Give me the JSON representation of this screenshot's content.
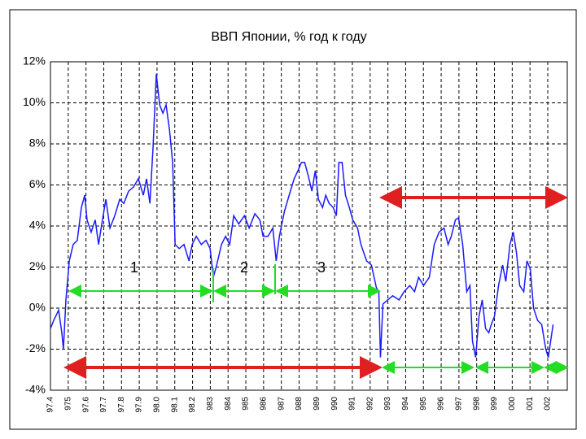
{
  "chart_data": {
    "type": "line",
    "title": "ВВП Японии, % год к году",
    "x": [
      1974.0,
      1974.18,
      1974.46,
      1974.64,
      1974.73,
      1974.87,
      1975.06,
      1975.28,
      1975.51,
      1975.74,
      1975.93,
      1976.06,
      1976.29,
      1976.52,
      1976.71,
      1976.89,
      1977.12,
      1977.35,
      1977.62,
      1977.9,
      1978.13,
      1978.4,
      1978.68,
      1978.95,
      1979.23,
      1979.41,
      1979.6,
      1979.78,
      1979.96,
      1980.15,
      1980.33,
      1980.51,
      1980.7,
      1980.88,
      1981.02,
      1981.25,
      1981.52,
      1981.8,
      1981.98,
      1982.21,
      1982.49,
      1982.76,
      1982.99,
      1983.17,
      1983.36,
      1983.63,
      1983.86,
      1984.09,
      1984.32,
      1984.6,
      1984.92,
      1985.19,
      1985.51,
      1985.79,
      1985.97,
      1986.25,
      1986.52,
      1986.71,
      1986.89,
      1987.17,
      1987.44,
      1987.72,
      1987.94,
      1988.13,
      1988.31,
      1988.5,
      1988.72,
      1988.91,
      1989.09,
      1989.32,
      1989.5,
      1989.69,
      1989.92,
      1990.1,
      1990.24,
      1990.42,
      1990.61,
      1990.83,
      1991.02,
      1991.29,
      1991.48,
      1991.8,
      1992.07,
      1992.35,
      1992.49,
      1992.58,
      1992.72,
      1992.99,
      1993.27,
      1993.63,
      1993.91,
      1994.23,
      1994.5,
      1994.73,
      1995.01,
      1995.33,
      1995.61,
      1995.88,
      1996.16,
      1996.39,
      1996.57,
      1996.8,
      1996.98,
      1997.21,
      1997.44,
      1997.62,
      1997.76,
      1997.94,
      1998.13,
      1998.31,
      1998.5,
      1998.68,
      1998.82,
      1999.0,
      1999.23,
      1999.46,
      1999.64,
      1999.87,
      2000.06,
      2000.24,
      2000.42,
      2000.65,
      2000.83,
      2001.02,
      2001.2,
      2001.43,
      2001.66,
      2001.89,
      2002.03,
      2002.3
    ],
    "series": [
      {
        "name": "ВВП",
        "color": "#1a1aff",
        "values": [
          -1.0,
          -0.6,
          -0.1,
          -1.2,
          -2.0,
          0.4,
          2.3,
          3.1,
          3.3,
          4.9,
          5.5,
          4.3,
          3.7,
          4.3,
          3.1,
          4.1,
          5.3,
          3.9,
          4.5,
          5.3,
          5.1,
          5.7,
          5.9,
          6.3,
          5.5,
          6.3,
          5.1,
          7.9,
          11.4,
          9.9,
          9.5,
          9.9,
          8.7,
          7.1,
          3.1,
          2.9,
          3.1,
          2.3,
          3.1,
          3.5,
          3.1,
          3.3,
          2.9,
          1.5,
          2.1,
          3.1,
          3.5,
          3.1,
          4.5,
          4.1,
          4.5,
          3.9,
          4.6,
          4.3,
          3.5,
          3.5,
          3.9,
          2.3,
          3.5,
          4.7,
          5.5,
          6.3,
          6.7,
          7.1,
          7.1,
          6.5,
          5.7,
          6.7,
          5.3,
          4.9,
          5.5,
          5.1,
          4.9,
          4.5,
          7.1,
          7.1,
          5.5,
          4.9,
          4.3,
          3.9,
          3.1,
          2.3,
          2.1,
          1.0,
          0.8,
          -2.4,
          0.2,
          0.4,
          0.6,
          0.4,
          0.8,
          1.1,
          0.8,
          1.5,
          1.1,
          1.5,
          3.1,
          3.7,
          3.9,
          3.1,
          3.5,
          4.3,
          4.4,
          3.1,
          0.8,
          1.1,
          -1.6,
          -2.4,
          -0.4,
          0.4,
          -1.0,
          -1.2,
          -0.8,
          -0.4,
          1.1,
          2.1,
          1.3,
          3.1,
          3.7,
          2.7,
          1.1,
          0.8,
          2.3,
          1.9,
          0.0,
          -0.6,
          -0.8,
          -2.0,
          -2.4,
          -0.8
        ]
      }
    ],
    "xlim": [
      1974,
      2003.1
    ],
    "xticks": [
      {
        "value": 1974,
        "label": "97.4"
      },
      {
        "value": 1975,
        "label": "975"
      },
      {
        "value": 1976,
        "label": "97.6"
      },
      {
        "value": 1977,
        "label": "97.7"
      },
      {
        "value": 1978,
        "label": "97.8"
      },
      {
        "value": 1979,
        "label": "97.9"
      },
      {
        "value": 1980,
        "label": "98.0"
      },
      {
        "value": 1981,
        "label": "98.1"
      },
      {
        "value": 1982,
        "label": "98.2"
      },
      {
        "value": 1983,
        "label": "983"
      },
      {
        "value": 1984,
        "label": "984"
      },
      {
        "value": 1985,
        "label": "985"
      },
      {
        "value": 1986,
        "label": "986"
      },
      {
        "value": 1987,
        "label": "987"
      },
      {
        "value": 1988,
        "label": "988"
      },
      {
        "value": 1989,
        "label": "989"
      },
      {
        "value": 1990,
        "label": "990"
      },
      {
        "value": 1991,
        "label": "991"
      },
      {
        "value": 1992,
        "label": "992"
      },
      {
        "value": 1993,
        "label": "993"
      },
      {
        "value": 1994,
        "label": "994"
      },
      {
        "value": 1995,
        "label": "995"
      },
      {
        "value": 1996,
        "label": "996"
      },
      {
        "value": 1997,
        "label": "997"
      },
      {
        "value": 1998,
        "label": "998"
      },
      {
        "value": 1999,
        "label": "999"
      },
      {
        "value": 2000,
        "label": "000"
      },
      {
        "value": 2001,
        "label": "001"
      },
      {
        "value": 2002,
        "label": "002"
      }
    ],
    "ylim": [
      -4,
      12
    ],
    "yticks": [
      {
        "value": -4,
        "label": "-4%"
      },
      {
        "value": -2,
        "label": "-2%"
      },
      {
        "value": 0,
        "label": "0%"
      },
      {
        "value": 2,
        "label": "2%"
      },
      {
        "value": 4,
        "label": "4%"
      },
      {
        "value": 6,
        "label": "6%"
      },
      {
        "value": 8,
        "label": "8%"
      },
      {
        "value": 10,
        "label": "10%"
      },
      {
        "value": 12,
        "label": "12%"
      }
    ],
    "grid": true,
    "annotations": [
      "1",
      "2",
      "3"
    ]
  }
}
